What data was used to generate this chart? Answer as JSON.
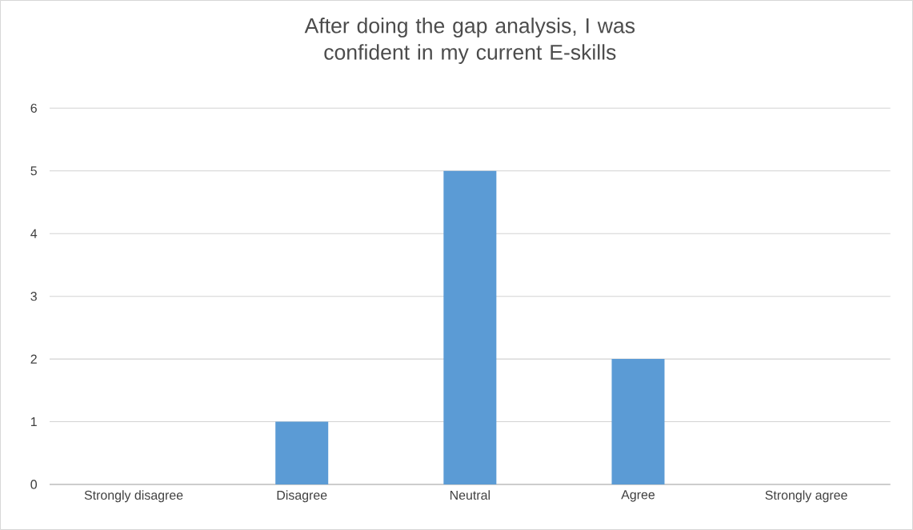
{
  "chart_data": {
    "type": "bar",
    "title": "After doing the gap analysis, I was confident in my current E-skills",
    "categories": [
      "Strongly disagree",
      "Disagree",
      "Neutral",
      "Agree",
      "Strongly agree"
    ],
    "values": [
      0,
      1,
      5,
      2,
      0
    ],
    "color": "#5b9bd5",
    "ylim": [
      0,
      6
    ],
    "yticks": [
      0,
      1,
      2,
      3,
      4,
      5,
      6
    ],
    "grid": "y"
  }
}
